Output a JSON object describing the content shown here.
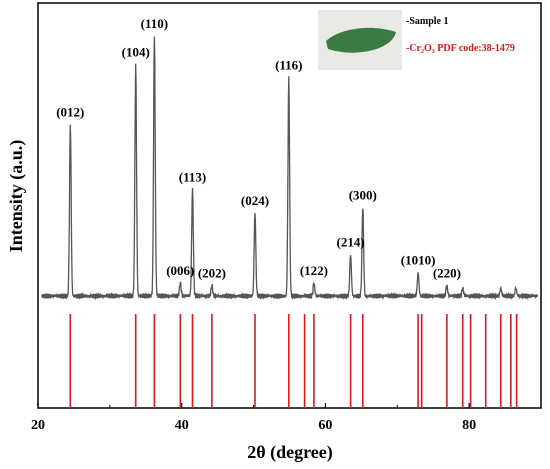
{
  "chart_data": {
    "type": "line",
    "xlabel": "2θ (degree)",
    "ylabel": "Intensity (a.u.)",
    "xlim": [
      20,
      90
    ],
    "x_ticks": [
      20,
      40,
      60,
      80
    ],
    "x_tick_labels": [
      "20",
      "40",
      "60",
      "80"
    ],
    "colors": {
      "pattern": "#555555",
      "reference": "#e0191b",
      "axes": "#000000",
      "inset_bg": "#e9e9e5",
      "inset_sample": "#3c7a43"
    },
    "legend": {
      "placement": "top-right",
      "entries": [
        {
          "text": "-Sample 1",
          "color": "#000000"
        },
        {
          "text": "-Cr₂O₃ PDF code:38-1479",
          "color": "#e0191b"
        }
      ]
    },
    "series": [
      {
        "name": "Sample 1",
        "kind": "xrd-pattern",
        "peaks": [
          {
            "two_theta": 24.5,
            "intensity": 0.66,
            "label": "(012)"
          },
          {
            "two_theta": 33.6,
            "intensity": 0.89,
            "label": "(104)"
          },
          {
            "two_theta": 36.2,
            "intensity": 1.0,
            "label": "(110)"
          },
          {
            "two_theta": 39.8,
            "intensity": 0.05,
            "label": "(006)"
          },
          {
            "two_theta": 41.5,
            "intensity": 0.41,
            "label": "(113)"
          },
          {
            "two_theta": 44.2,
            "intensity": 0.04,
            "label": "(202)"
          },
          {
            "two_theta": 50.2,
            "intensity": 0.32,
            "label": "(024)"
          },
          {
            "two_theta": 54.9,
            "intensity": 0.84,
            "label": "(116)"
          },
          {
            "two_theta": 58.4,
            "intensity": 0.05,
            "label": "(122)"
          },
          {
            "two_theta": 63.5,
            "intensity": 0.16,
            "label": "(214)"
          },
          {
            "two_theta": 65.2,
            "intensity": 0.34,
            "label": "(300)"
          },
          {
            "two_theta": 72.9,
            "intensity": 0.09,
            "label": "(1010)"
          },
          {
            "two_theta": 76.9,
            "intensity": 0.04,
            "label": "(220)"
          },
          {
            "two_theta": 79.1,
            "intensity": 0.03,
            "label": ""
          },
          {
            "two_theta": 84.4,
            "intensity": 0.03,
            "label": ""
          },
          {
            "two_theta": 86.5,
            "intensity": 0.03,
            "label": ""
          }
        ]
      },
      {
        "name": "Cr₂O₃ PDF code:38-1479",
        "kind": "reference-lines",
        "x": [
          24.5,
          33.6,
          36.2,
          39.8,
          41.5,
          44.2,
          50.2,
          54.9,
          57.1,
          58.4,
          63.5,
          65.2,
          72.9,
          73.4,
          76.9,
          79.1,
          80.2,
          82.3,
          84.4,
          85.8,
          86.6
        ]
      }
    ]
  }
}
